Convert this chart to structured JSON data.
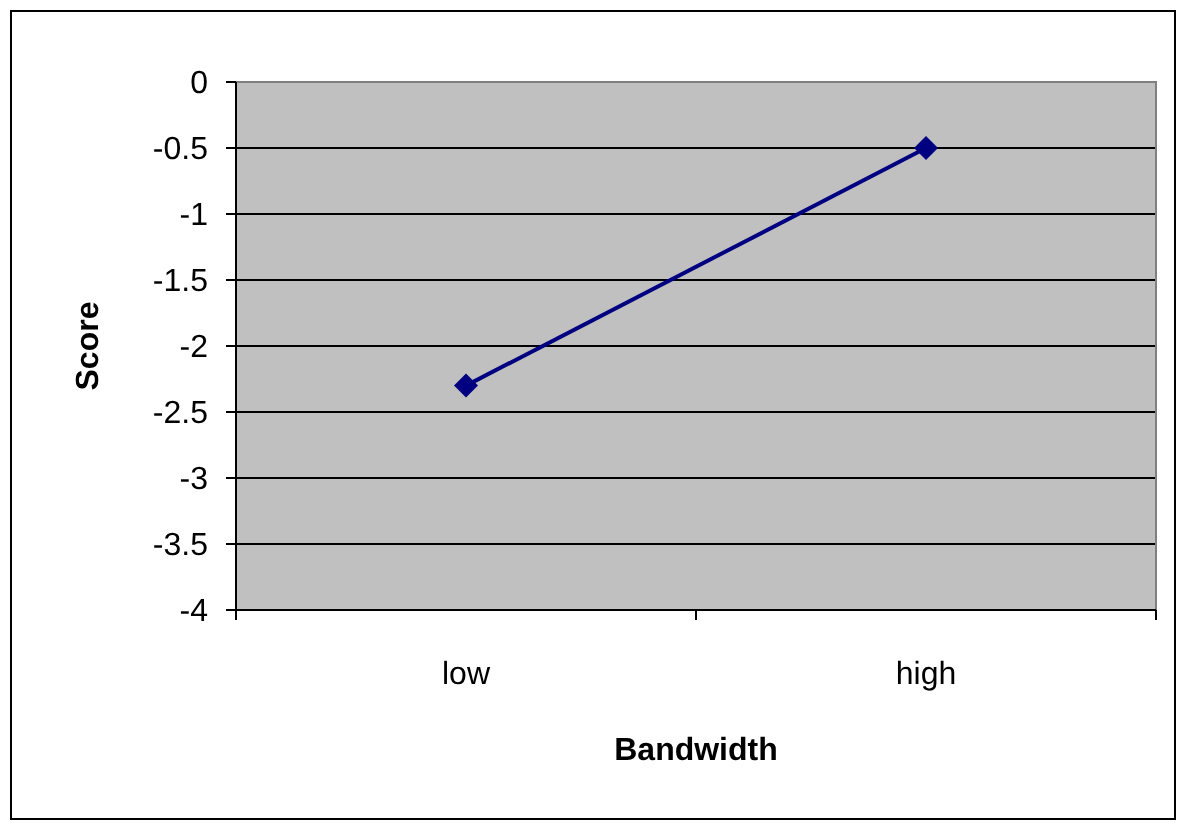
{
  "chart_data": {
    "type": "line",
    "xlabel": "Bandwidth",
    "ylabel": "Score",
    "categories": [
      "low",
      "high"
    ],
    "series": [
      {
        "color": "#000080",
        "values": [
          -2.3,
          -0.5
        ]
      }
    ],
    "ylim": [
      -4,
      0
    ],
    "yticks": [
      -4,
      -3.5,
      -3,
      -2.5,
      -2,
      -1.5,
      -1,
      -0.5,
      0
    ],
    "grid": "y",
    "marker": "diamond",
    "line_style": "solid"
  }
}
